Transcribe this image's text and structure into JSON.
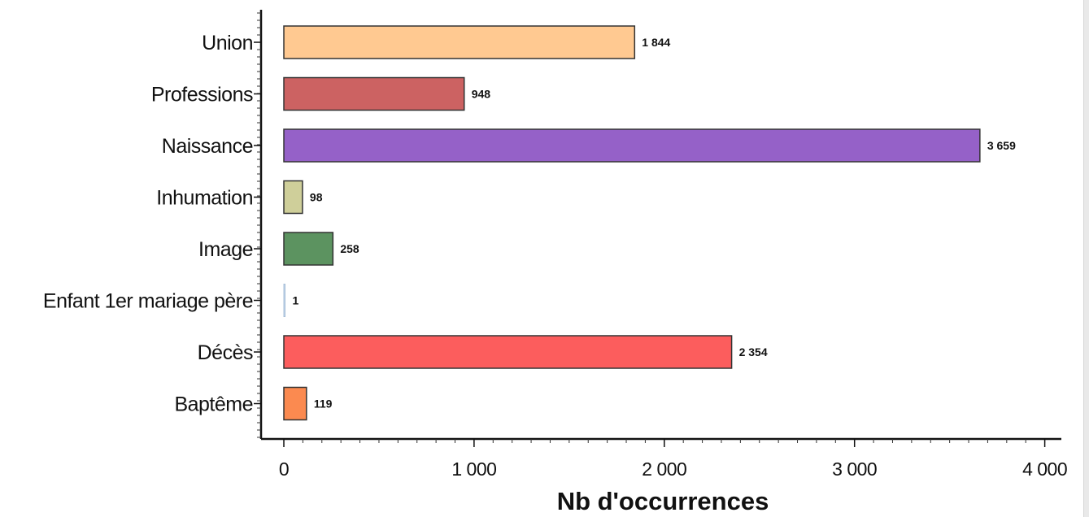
{
  "chart_data": {
    "type": "bar",
    "orientation": "horizontal",
    "categories": [
      "Union",
      "Professions",
      "Naissance",
      "Inhumation",
      "Image",
      "Enfant 1er mariage père",
      "Décès",
      "Baptême"
    ],
    "values": [
      1844,
      948,
      3659,
      98,
      258,
      1,
      2354,
      119
    ],
    "value_labels": [
      "1 844",
      "948",
      "3 659",
      "98",
      "258",
      "1",
      "2 354",
      "119"
    ],
    "colors": [
      "#ffc991",
      "#cc6262",
      "#9561c8",
      "#cfcf9a",
      "#5c9360",
      "#c8dcf2",
      "#fc5d5d",
      "#fb8a50"
    ],
    "xlabel": "Nb d'occurrences",
    "ylabel": "",
    "xlim": [
      0,
      4000
    ],
    "x_ticks": [
      0,
      1000,
      2000,
      3000,
      4000
    ],
    "x_tick_labels": [
      "0",
      "1 000",
      "2 000",
      "3 000",
      "4 000"
    ],
    "grid": false,
    "legend": "none"
  }
}
